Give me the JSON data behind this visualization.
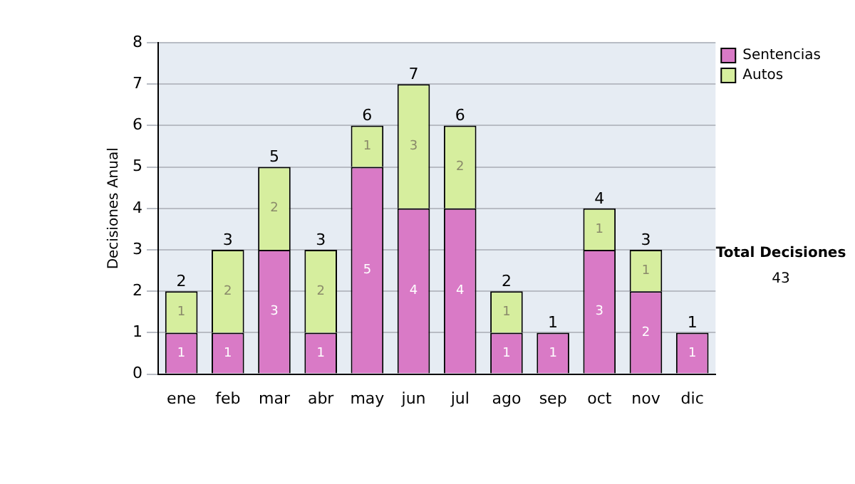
{
  "chart_data": {
    "type": "bar",
    "stacked": true,
    "ylabel": "Decisiones Anual",
    "categories": [
      "ene",
      "feb",
      "mar",
      "abr",
      "may",
      "jun",
      "jul",
      "ago",
      "sep",
      "oct",
      "nov",
      "dic"
    ],
    "series": [
      {
        "name": "Sentencias",
        "color": "#d97ac6",
        "values": [
          1,
          1,
          3,
          1,
          5,
          4,
          4,
          1,
          1,
          3,
          2,
          1
        ]
      },
      {
        "name": "Autos",
        "color": "#d6ee9e",
        "values": [
          1,
          2,
          2,
          2,
          1,
          3,
          2,
          1,
          null,
          1,
          1,
          null
        ]
      }
    ],
    "totals": [
      "2",
      "3",
      "5",
      "3",
      "6",
      "7",
      "6",
      "2",
      "1",
      "4",
      "3",
      "1"
    ],
    "data_labels": true,
    "ylim": [
      0,
      8
    ],
    "yticks": [
      0,
      1,
      2,
      3,
      4,
      5,
      6,
      7,
      8
    ],
    "grid": "y",
    "legend": "right",
    "annotations": [
      "Total Decisiones",
      "43"
    ]
  }
}
